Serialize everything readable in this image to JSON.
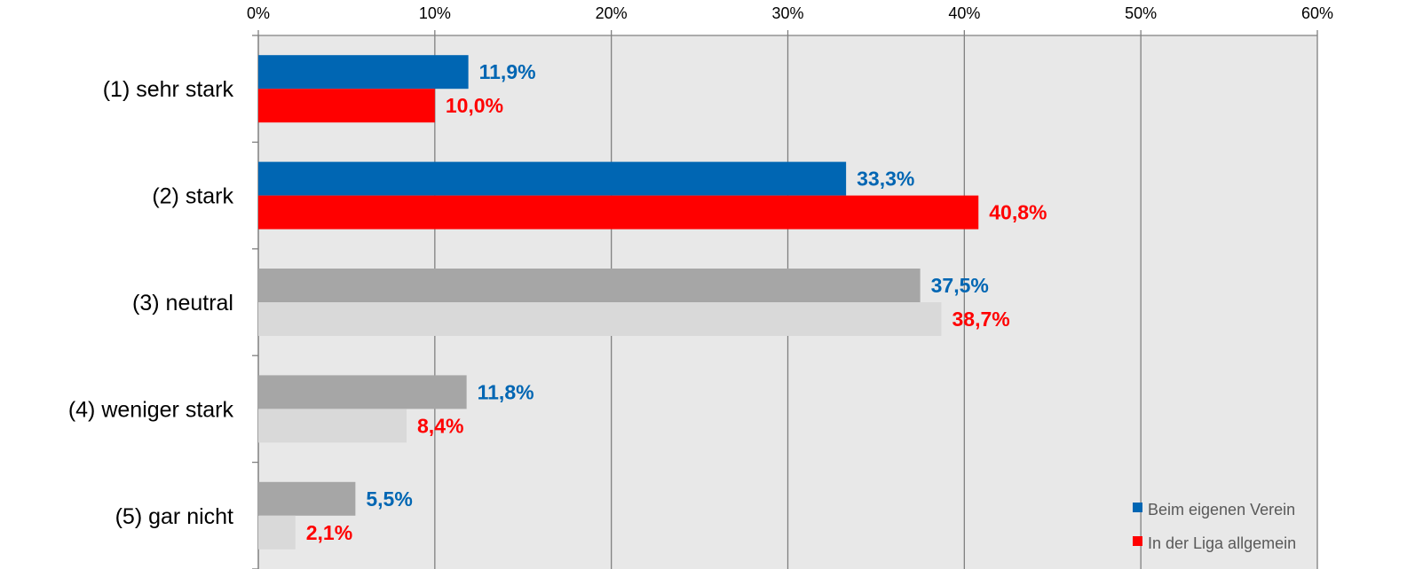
{
  "chart_data": {
    "type": "bar",
    "orientation": "horizontal",
    "categories": [
      "(1) sehr stark",
      "(2) stark",
      "(3) neutral",
      "(4) weniger stark",
      "(5) gar nicht"
    ],
    "series": [
      {
        "name": "Beim eigenen Verein",
        "values": [
          11.9,
          33.3,
          37.5,
          11.8,
          5.5
        ],
        "labels": [
          "11,9%",
          "33,3%",
          "37,5%",
          "11,8%",
          "5,5%"
        ],
        "bar_colors": [
          "#0066B3",
          "#0066B3",
          "#A6A6A6",
          "#A6A6A6",
          "#A6A6A6"
        ],
        "label_color": "#0066B3"
      },
      {
        "name": "In der Liga allgemein",
        "values": [
          10.0,
          40.8,
          38.7,
          8.4,
          2.1
        ],
        "labels": [
          "10,0%",
          "40,8%",
          "38,7%",
          "8,4%",
          "2,1%"
        ],
        "bar_colors": [
          "#FF0000",
          "#FF0000",
          "#D9D9D9",
          "#D9D9D9",
          "#D9D9D9"
        ],
        "label_color": "#FF0000"
      }
    ],
    "xlim": [
      0,
      60
    ],
    "xticks": [
      0,
      10,
      20,
      30,
      40,
      50,
      60
    ],
    "xtick_labels": [
      "0%",
      "10%",
      "20%",
      "30%",
      "40%",
      "50%",
      "60%"
    ],
    "x_axis_position": "top",
    "grid": true,
    "legend": {
      "position": "bottom-right",
      "entries": [
        {
          "label": "Beim eigenen Verein",
          "color": "#0066B3"
        },
        {
          "label": "In der Liga allgemein",
          "color": "#FF0000"
        }
      ]
    },
    "plot_background": "#E8E8E8",
    "gridline_color": "#808080"
  }
}
